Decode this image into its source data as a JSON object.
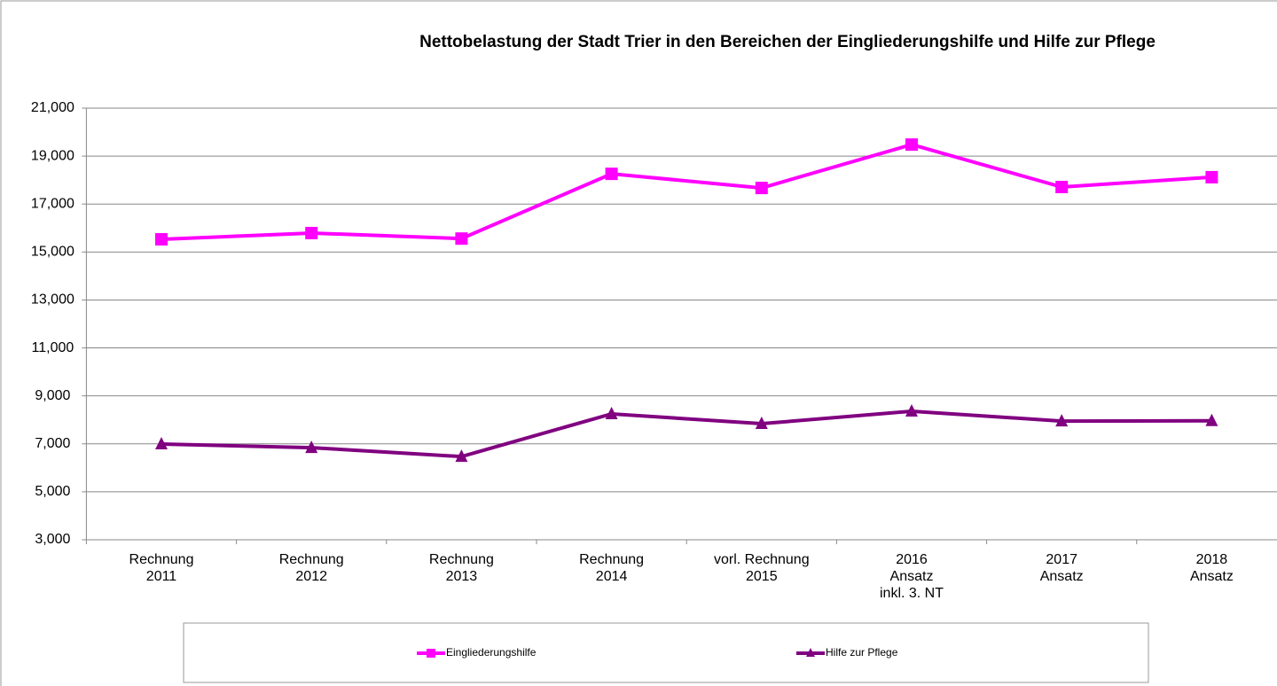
{
  "chart_data": {
    "type": "line",
    "title": "Nettobelastung der Stadt Trier in den Bereichen der Eingliederungshilfe und Hilfe zur Pflege",
    "categories": [
      [
        "Rechnung",
        "2011"
      ],
      [
        "Rechnung",
        "2012"
      ],
      [
        "Rechnung",
        "2013"
      ],
      [
        "Rechnung",
        "2014"
      ],
      [
        "vorl. Rechnung",
        "2015"
      ],
      [
        "2016",
        "Ansatz",
        "inkl. 3. NT"
      ],
      [
        "2017",
        "Ansatz"
      ],
      [
        "2018",
        "Ansatz"
      ]
    ],
    "series": [
      {
        "name": "Eingliederungshilfe",
        "color": "#ff00ff",
        "marker": "square",
        "values": [
          15530,
          15790,
          15560,
          18260,
          17670,
          19480,
          17710,
          18120
        ]
      },
      {
        "name": "Hilfe zur Pflege",
        "color": "#800080",
        "marker": "triangle",
        "values": [
          6990,
          6840,
          6470,
          8250,
          7840,
          8360,
          7950,
          7960
        ]
      }
    ],
    "ylim": [
      3000,
      21000
    ],
    "yticks": [
      {
        "value": 3000,
        "label": "3,000"
      },
      {
        "value": 5000,
        "label": "5,000"
      },
      {
        "value": 7000,
        "label": "7,000"
      },
      {
        "value": 9000,
        "label": "9,000"
      },
      {
        "value": 11000,
        "label": "11,000"
      },
      {
        "value": 13000,
        "label": "13,000"
      },
      {
        "value": 15000,
        "label": "15,000"
      },
      {
        "value": 17000,
        "label": "17,000"
      },
      {
        "value": 19000,
        "label": "19,000"
      },
      {
        "value": 21000,
        "label": "21,000"
      }
    ],
    "grid": true
  }
}
